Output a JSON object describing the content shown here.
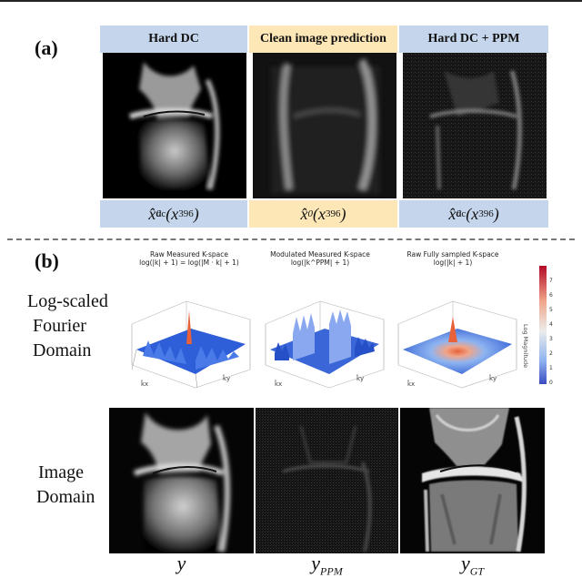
{
  "panel_a": {
    "label": "(a)",
    "headers": [
      "Hard DC",
      "Clean image prediction",
      "Hard DC + PPM"
    ],
    "formulas": [
      {
        "base": "x̂",
        "sub": "0",
        "sup": "dc",
        "arg": "(x",
        "arg_sub": "396",
        "close": ")"
      },
      {
        "base": "x̂",
        "sub": "0",
        "sup": "",
        "arg": "(x",
        "arg_sub": "396",
        "close": ")"
      },
      {
        "base": "x̂",
        "sub": "0",
        "sup": "dc",
        "arg": "(x",
        "arg_sub": "396",
        "close": ")"
      }
    ]
  },
  "panel_b": {
    "label": "(b)",
    "row1_label": [
      "Log-scaled",
      "Fourier",
      "Domain"
    ],
    "row2_label": [
      "Image",
      "Domain"
    ],
    "plot_titles": [
      [
        "Raw Measured K-space",
        "log(|k| + 1) = log(|M · k| + 1)"
      ],
      [
        "Modulated Measured K-space",
        "log(|k^PPM| + 1)"
      ],
      [
        "Raw Fully sampled K-space",
        "log(|k| + 1)"
      ]
    ],
    "colorbar": {
      "label": "Log Magnitude",
      "ticks": [
        "8",
        "7",
        "6",
        "5",
        "4",
        "3",
        "2",
        "1",
        "0"
      ]
    },
    "captions": [
      {
        "main": "y",
        "sub": ""
      },
      {
        "main": "y",
        "sub": "PPM"
      },
      {
        "main": "y",
        "sub": "GT"
      }
    ]
  },
  "colors": {
    "header_blue": "#c5d6ec",
    "header_yellow": "#fde7b6",
    "surface_blue": "#3a66d8",
    "peak": "#e8613a"
  }
}
